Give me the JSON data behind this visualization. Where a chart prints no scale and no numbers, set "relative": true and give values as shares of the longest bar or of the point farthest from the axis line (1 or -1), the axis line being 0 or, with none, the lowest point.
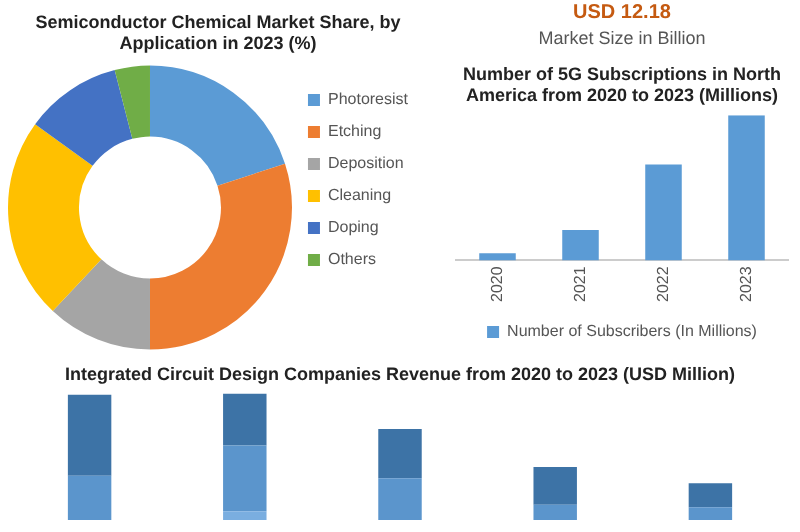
{
  "chart_data": [
    {
      "type": "donut",
      "title": "Semiconductor Chemical Market Share, by Application in 2023 (%)",
      "categories": [
        "Photoresist",
        "Etching",
        "Deposition",
        "Cleaning",
        "Doping",
        "Others"
      ],
      "values": [
        20,
        30,
        12,
        23,
        11,
        4
      ],
      "colors": [
        "#5b9bd5",
        "#ed7d31",
        "#a5a5a5",
        "#ffc000",
        "#4472c4",
        "#70ad47"
      ],
      "legend": "right"
    },
    {
      "type": "other",
      "annotations": [
        "USD 12.18",
        "Market Size in Billion"
      ]
    },
    {
      "type": "bar",
      "title": "Number of 5G Subscriptions in North America from 2020 to 2023 (Millions)",
      "categories": [
        "2020",
        "2021",
        "2022",
        "2023"
      ],
      "relative": true,
      "series": [
        {
          "name": "Number of Subscribers (In Millions)",
          "color": "#5b9bd5",
          "values": [
            0.05,
            0.21,
            0.66,
            1
          ]
        }
      ],
      "legend": "bottom",
      "grid": false
    },
    {
      "type": "bar",
      "title": "Integrated Circuit Design Companies Revenue from 2020 to 2023 (USD Million)",
      "categories": [
        null,
        null,
        null,
        null,
        null
      ],
      "relative": true,
      "stacked": true,
      "grid": false,
      "legend": false,
      "series": [
        {
          "color": "#7aaee0",
          "values": [
            0,
            0.07,
            0,
            0,
            0
          ]
        },
        {
          "color": "#5b95cc",
          "values": [
            0.35,
            0.52,
            0.33,
            0.12,
            0.1
          ]
        },
        {
          "color": "#3d73a6",
          "values": [
            0.64,
            0.41,
            0.39,
            0.3,
            0.19
          ]
        }
      ]
    }
  ]
}
